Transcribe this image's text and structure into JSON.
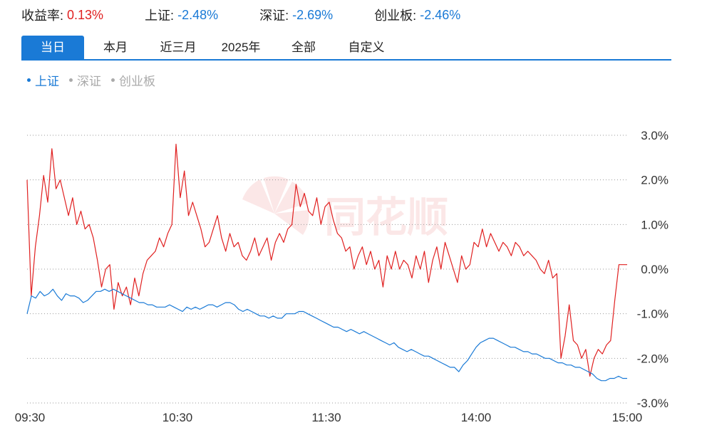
{
  "stats": [
    {
      "label": "收益率:",
      "value": "0.13%",
      "color": "#e02020"
    },
    {
      "label": "上证:",
      "value": "-2.48%",
      "color": "#1a7ad6"
    },
    {
      "label": "深证:",
      "value": "-2.69%",
      "color": "#1a7ad6"
    },
    {
      "label": "创业板:",
      "value": "-2.46%",
      "color": "#1a7ad6"
    }
  ],
  "tabs": [
    "当日",
    "本月",
    "近三月",
    "2025年",
    "全部",
    "自定义"
  ],
  "active_tab": 0,
  "legend": [
    {
      "label": "上证",
      "color": "#1a7ad6",
      "active": true
    },
    {
      "label": "深证",
      "color": "#aaaaaa",
      "active": false
    },
    {
      "label": "创业板",
      "color": "#aaaaaa",
      "active": false
    }
  ],
  "watermark": "同花顺",
  "chart_data": {
    "type": "line",
    "x_ticks": [
      "09:30",
      "10:30",
      "11:30",
      "14:00",
      "15:00"
    ],
    "y_ticks": [
      "3.0%",
      "2.0%",
      "1.0%",
      "0.0%",
      "-1.0%",
      "-2.0%",
      "-3.0%"
    ],
    "ylim": [
      -3.0,
      3.0
    ],
    "grid": true,
    "series": [
      {
        "color": "#e02020",
        "values": [
          2.0,
          -0.6,
          0.5,
          1.2,
          2.1,
          1.5,
          2.7,
          1.8,
          2.0,
          1.6,
          1.2,
          1.6,
          1.0,
          1.3,
          0.9,
          1.0,
          0.7,
          0.2,
          -0.4,
          0.0,
          0.1,
          -0.9,
          -0.3,
          -0.6,
          -0.4,
          -0.8,
          -0.2,
          -0.6,
          -0.1,
          0.2,
          0.3,
          0.4,
          0.7,
          0.5,
          0.8,
          1.0,
          2.8,
          1.6,
          2.2,
          1.2,
          1.5,
          1.2,
          0.9,
          0.5,
          0.6,
          0.9,
          1.2,
          0.7,
          0.4,
          0.8,
          0.5,
          0.6,
          0.3,
          0.2,
          0.4,
          0.7,
          0.3,
          0.5,
          0.7,
          0.2,
          0.6,
          0.8,
          0.6,
          0.9,
          1.0,
          1.9,
          1.4,
          1.7,
          1.3,
          1.2,
          1.6,
          1.0,
          1.4,
          1.5,
          1.1,
          0.8,
          0.7,
          0.4,
          0.5,
          0.0,
          0.3,
          0.5,
          0.1,
          0.4,
          0.0,
          0.2,
          -0.4,
          0.3,
          0.0,
          0.4,
          0.0,
          0.2,
          0.1,
          -0.2,
          0.3,
          0.0,
          0.4,
          -0.3,
          0.2,
          0.5,
          0.0,
          0.6,
          0.3,
          0.0,
          -0.3,
          0.3,
          0.0,
          0.1,
          0.6,
          0.5,
          0.9,
          0.5,
          0.8,
          0.6,
          0.4,
          0.6,
          0.5,
          0.3,
          0.6,
          0.5,
          0.3,
          0.4,
          0.3,
          0.2,
          0.0,
          -0.1,
          0.2,
          -0.2,
          -0.1,
          -2.0,
          -1.5,
          -0.8,
          -1.6,
          -1.7,
          -2.0,
          -1.8,
          -2.4,
          -2.0,
          -1.8,
          -1.9,
          -1.7,
          -1.6,
          -0.7,
          0.1,
          0.1,
          0.1
        ]
      },
      {
        "color": "#1a7ad6",
        "values": [
          -1.0,
          -0.6,
          -0.65,
          -0.5,
          -0.6,
          -0.55,
          -0.45,
          -0.6,
          -0.7,
          -0.55,
          -0.6,
          -0.6,
          -0.65,
          -0.75,
          -0.7,
          -0.6,
          -0.5,
          -0.5,
          -0.45,
          -0.5,
          -0.45,
          -0.5,
          -0.55,
          -0.6,
          -0.65,
          -0.7,
          -0.75,
          -0.75,
          -0.8,
          -0.8,
          -0.85,
          -0.85,
          -0.85,
          -0.8,
          -0.85,
          -0.9,
          -0.95,
          -0.85,
          -0.9,
          -0.85,
          -0.9,
          -0.85,
          -0.8,
          -0.8,
          -0.85,
          -0.8,
          -0.75,
          -0.75,
          -0.8,
          -0.9,
          -0.95,
          -0.9,
          -0.95,
          -1.0,
          -1.05,
          -1.05,
          -1.1,
          -1.05,
          -1.1,
          -1.1,
          -1.0,
          -1.0,
          -1.0,
          -0.95,
          -0.95,
          -1.0,
          -1.05,
          -1.1,
          -1.15,
          -1.2,
          -1.25,
          -1.3,
          -1.3,
          -1.35,
          -1.4,
          -1.35,
          -1.4,
          -1.45,
          -1.4,
          -1.45,
          -1.5,
          -1.55,
          -1.6,
          -1.65,
          -1.7,
          -1.65,
          -1.75,
          -1.8,
          -1.85,
          -1.8,
          -1.85,
          -1.9,
          -1.95,
          -1.95,
          -2.0,
          -2.05,
          -2.1,
          -2.15,
          -2.2,
          -2.2,
          -2.3,
          -2.15,
          -2.05,
          -1.9,
          -1.75,
          -1.65,
          -1.6,
          -1.55,
          -1.55,
          -1.6,
          -1.65,
          -1.7,
          -1.75,
          -1.75,
          -1.8,
          -1.85,
          -1.85,
          -1.9,
          -1.9,
          -1.95,
          -2.0,
          -2.0,
          -2.05,
          -2.1,
          -2.1,
          -2.15,
          -2.15,
          -2.2,
          -2.2,
          -2.25,
          -2.3,
          -2.35,
          -2.45,
          -2.5,
          -2.5,
          -2.45,
          -2.45,
          -2.4,
          -2.45,
          -2.45
        ]
      }
    ]
  }
}
